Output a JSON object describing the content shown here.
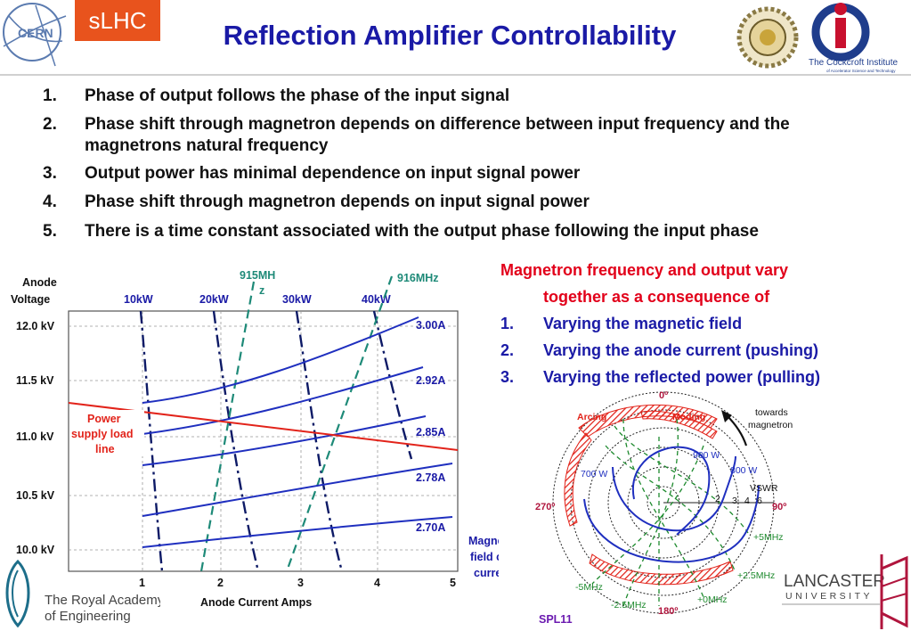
{
  "header": {
    "badge": "sLHC",
    "title": "Reflection Amplifier Controllability",
    "cern_logo_text": "CERN",
    "cockcroft_name": "The Cockcroft Institute",
    "cockcroft_sub": "of Accelerator Science and Technology",
    "lancaster_top": "LANCASTER",
    "lancaster_bottom": "UNIVERSITY",
    "royal_academy_line1": "The Royal Academy",
    "royal_academy_line2": "of Engineering"
  },
  "points": [
    {
      "num": "1.",
      "text": "Phase of output follows the phase of the input signal"
    },
    {
      "num": "2.",
      "text": "Phase shift through magnetron depends on difference between input frequency and the magnetrons natural frequency"
    },
    {
      "num": "3.",
      "text": "Output power has minimal dependence on input signal power"
    },
    {
      "num": "4.",
      "text": "Phase shift through magnetron depends on input signal power"
    },
    {
      "num": "5.",
      "text": "There is a time constant associated with the output phase following the input phase"
    }
  ],
  "right_panel": {
    "heading_line1": "Magnetron frequency and output vary",
    "heading_line2": "together as a consequence of",
    "items": [
      {
        "num": "1.",
        "text": "Varying the magnetic field"
      },
      {
        "num": "2.",
        "text": "Varying the anode current (pushing)"
      },
      {
        "num": "3.",
        "text": "Varying the reflected power (pulling)"
      }
    ]
  },
  "left_chart": {
    "ylabel_line1": "Anode",
    "ylabel_line2": "Voltage",
    "yticks": [
      "12.0 kV",
      "11.5 kV",
      "11.0 kV",
      "10.5 kV",
      "10.0 kV"
    ],
    "xticks": [
      "1",
      "2",
      "3",
      "4",
      "5"
    ],
    "xlabel": "Anode Current Amps",
    "power_labels": [
      "10kW",
      "20kW",
      "30kW",
      "40kW"
    ],
    "freq_label_915_line1": "915MH",
    "freq_label_915_line2": "z",
    "freq_label_916": "916MHz",
    "field_labels": [
      "3.00A",
      "2.92A",
      "2.85A",
      "2.78A",
      "2.70A"
    ],
    "load_line_line1": "Power",
    "load_line_line2": "supply load",
    "load_line_line3": "line",
    "field_caption_line1": "Magnetic",
    "field_caption_line2": "field coil",
    "field_caption_line3": "current",
    "colors": {
      "field": "#1f2fbf",
      "load": "#e2231a",
      "freq": "#1e8a78",
      "power": "#0d1a66"
    }
  },
  "rieke_diagram": {
    "angle_top": "0º",
    "angle_right": "90º",
    "angle_bottom": "180º",
    "angle_left": "270º",
    "arcing": "Arcing",
    "moding": "Moding",
    "towards_line1": "towards",
    "towards_line2": "magnetron",
    "power_900": "900 W",
    "power_800": "800 W",
    "power_700": "700 W",
    "vswr": "VSWR",
    "vswr_ticks": [
      "2",
      "3",
      "4",
      "6"
    ],
    "freq_p5": "+5MHz",
    "freq_p25": "+2.5MHz",
    "freq_0": "+0MHz",
    "freq_m25": "-2.5MHz",
    "freq_m5": "-5MHz",
    "ref": "SPL11"
  }
}
